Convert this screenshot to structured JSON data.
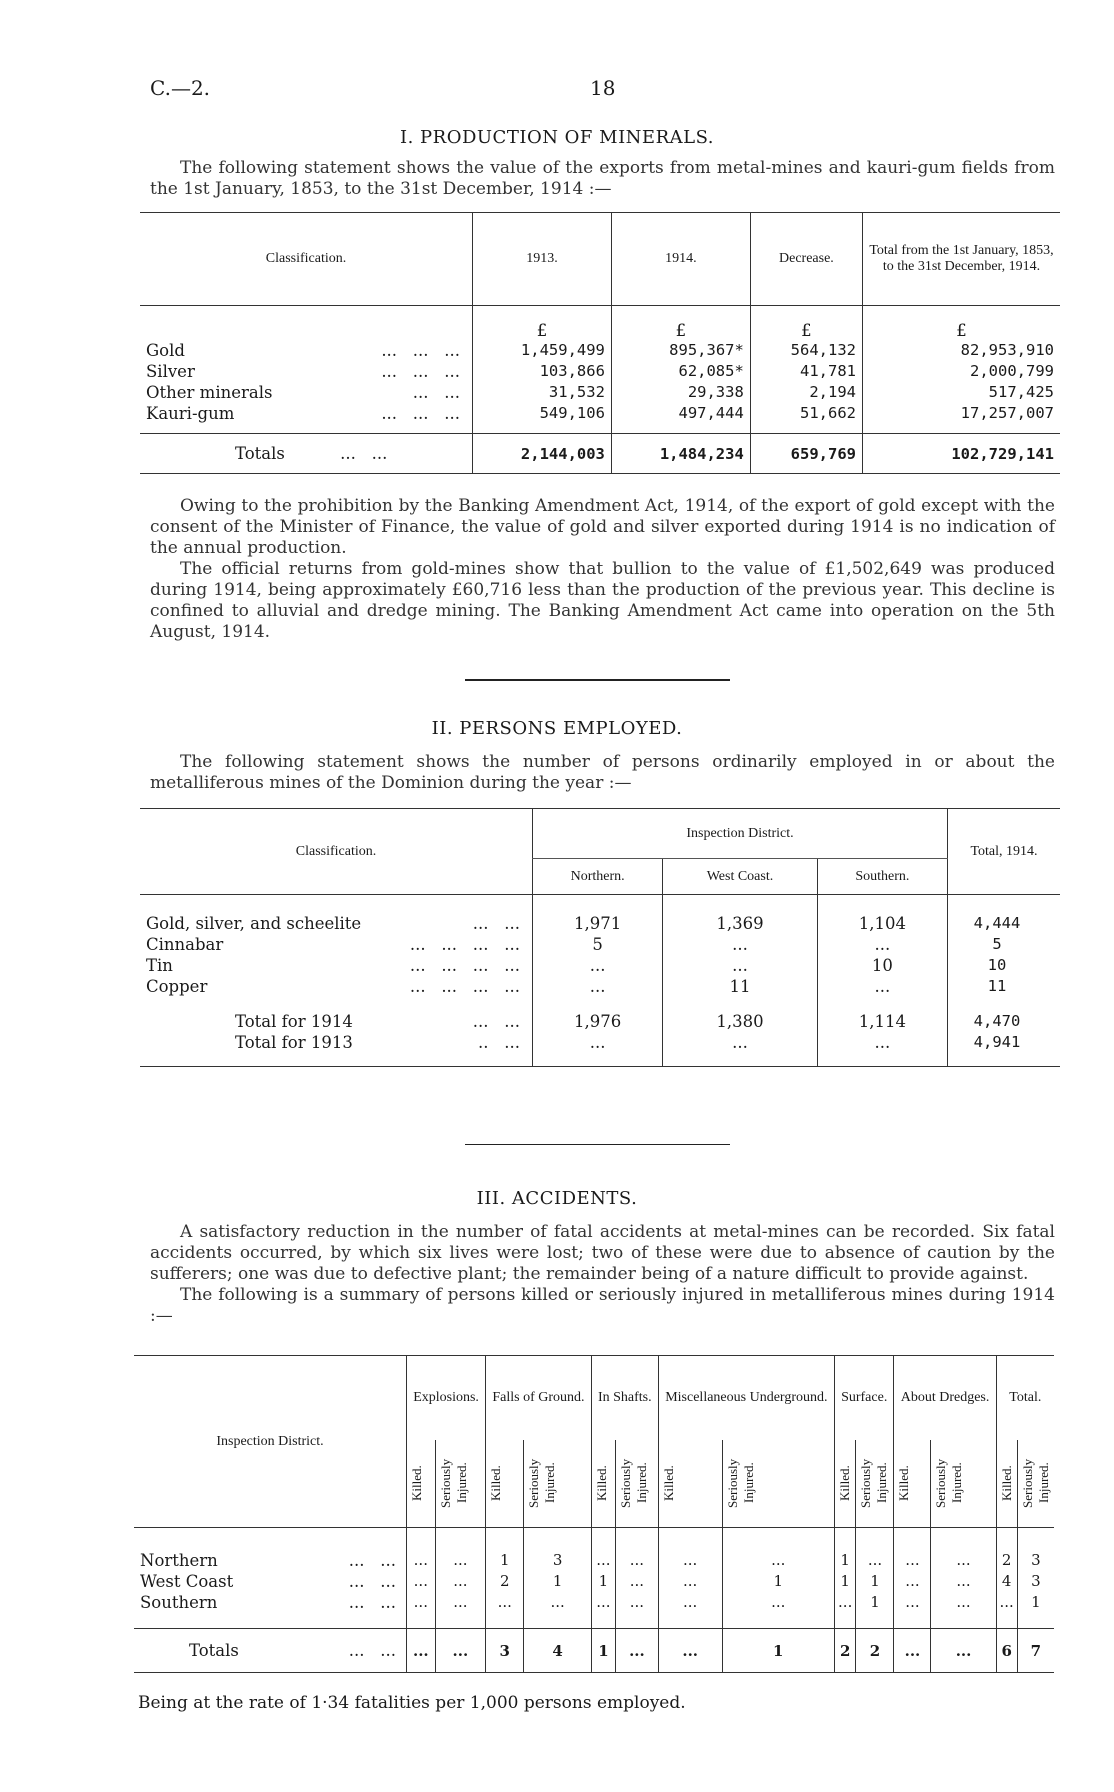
{
  "header": {
    "code": "C.—2.",
    "page": "18"
  },
  "s1": {
    "title": "I. PRODUCTION OF MINERALS.",
    "intro": "The following statement shows the value of the exports from metal-mines and kauri-gum fields from the 1st January, 1853, to the 31st December, 1914 :—",
    "cols": [
      "Classification.",
      "1913.",
      "1914.",
      "Decrease.",
      "Total from the 1st January, 1853, to the 31st December, 1914."
    ],
    "unit": "£",
    "rows": [
      {
        "label": "Gold",
        "dots": "...   ...   ...",
        "v": [
          "1,459,499",
          "895,367*",
          "564,132",
          "82,953,910"
        ]
      },
      {
        "label": "Silver",
        "dots": "...   ...   ...",
        "v": [
          "103,866",
          "62,085*",
          "41,781",
          "2,000,799"
        ]
      },
      {
        "label": "Other minerals",
        "dots": "...   ...",
        "v": [
          "31,532",
          "29,338",
          "2,194",
          "517,425"
        ]
      },
      {
        "label": "Kauri-gum",
        "dots": "...   ...   ...",
        "v": [
          "549,106",
          "497,444",
          "51,662",
          "17,257,007"
        ]
      }
    ],
    "totals": {
      "label": "Totals",
      "dots": "...   ...",
      "v": [
        "2,144,003",
        "1,484,234",
        "659,769",
        "102,729,141"
      ]
    },
    "notes": [
      "Owing to the prohibition by the Banking Amendment Act, 1914, of the export of gold except with the consent of the Minister of Finance, the value of gold and silver exported during 1914 is no indication of the annual production.",
      "The official returns from gold-mines show that bullion to the value of £1,502,649 was produced during 1914, being approximately £60,716 less than the production of the previous year. This decline is confined to alluvial and dredge mining. The Banking Amendment Act came into operation on the 5th August, 1914."
    ]
  },
  "s2": {
    "title": "II. PERSONS EMPLOYED.",
    "intro": "The following statement shows the number of persons ordinarily employed in or about the metalliferous mines of the Dominion during the year :—",
    "cols": {
      "classification": "Classification.",
      "group": "Inspection District.",
      "sub": [
        "Northern.",
        "West Coast.",
        "Southern."
      ],
      "total": "Total, 1914."
    },
    "rows": [
      {
        "label": "Gold, silver, and scheelite",
        "dots": "...   ...",
        "v": [
          "1,971",
          "1,369",
          "1,104",
          "4,444"
        ]
      },
      {
        "label": "Cinnabar",
        "dots": "...   ...   ...   ...",
        "v": [
          "5",
          "...",
          "...",
          "5"
        ]
      },
      {
        "label": "Tin",
        "dots": "...   ...   ...   ...",
        "v": [
          "...",
          "...",
          "10",
          "10"
        ]
      },
      {
        "label": "Copper",
        "dots": "...   ...   ...   ...",
        "v": [
          "...",
          "11",
          "...",
          "11"
        ]
      }
    ],
    "totals": [
      {
        "label": "Total for 1914",
        "dots": "...   ...",
        "v": [
          "1,976",
          "1,380",
          "1,114",
          "4,470"
        ]
      },
      {
        "label": "Total for 1913",
        "dots": "..   ...",
        "v": [
          "...",
          "...",
          "...",
          "4,941"
        ]
      }
    ]
  },
  "s3": {
    "title": "III. ACCIDENTS.",
    "paras": [
      "A satisfactory reduction in the number of fatal accidents at metal-mines can be recorded. Six fatal accidents occurred, by which six lives were lost; two of these were due to absence of caution by the sufferers; one was due to defective plant; the remainder being of a nature difficult to provide against.",
      "The following is a summary of persons killed or seriously injured in metalliferous mines during 1914 :—"
    ],
    "district_header": "Inspection District.",
    "groups": [
      "Explosions.",
      "Falls of Ground.",
      "In Shafts.",
      "Miscellaneous Underground.",
      "Surface.",
      "About Dredges.",
      "Total."
    ],
    "sub": [
      "Killed.",
      "Seriously\nInjured."
    ],
    "rows": [
      {
        "label": "Northern",
        "dots": "...   ...",
        "v": [
          "...",
          "...",
          "1",
          "3",
          "...",
          "...",
          "...",
          "...",
          "1",
          "...",
          "...",
          "...",
          "2",
          "3"
        ]
      },
      {
        "label": "West Coast",
        "dots": "...   ...",
        "v": [
          "...",
          "...",
          "2",
          "1",
          "1",
          "...",
          "...",
          "1",
          "1",
          "1",
          "...",
          "...",
          "4",
          "3"
        ]
      },
      {
        "label": "Southern",
        "dots": "...   ...",
        "v": [
          "...",
          "...",
          "...",
          "...",
          "...",
          "...",
          "...",
          "...",
          "...",
          "1",
          "...",
          "...",
          "...",
          "1"
        ]
      }
    ],
    "totals": {
      "label": "Totals",
      "dots": "...   ...",
      "v": [
        "...",
        "...",
        "3",
        "4",
        "1",
        "...",
        "...",
        "1",
        "2",
        "2",
        "...",
        "...",
        "6",
        "7"
      ]
    },
    "footer": "Being at the rate of 1·34 fatalities per 1,000 persons employed."
  }
}
